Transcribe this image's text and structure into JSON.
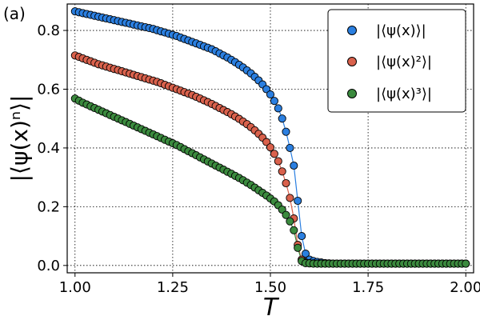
{
  "panel_label": "(a)",
  "chart_data": {
    "type": "scatter",
    "xlabel": "T",
    "ylabel": "|⟨ψ(x)ⁿ⟩|",
    "xlim": [
      0.98,
      2.02
    ],
    "ylim": [
      -0.025,
      0.89
    ],
    "xticks": [
      1.0,
      1.25,
      1.5,
      1.75,
      2.0
    ],
    "xtick_labels": [
      "1.00",
      "1.25",
      "1.50",
      "1.75",
      "2.00"
    ],
    "yticks": [
      0.0,
      0.2,
      0.4,
      0.6,
      0.8
    ],
    "ytick_labels": [
      "0.0",
      "0.2",
      "0.4",
      "0.6",
      "0.8"
    ],
    "grid": true,
    "legend_position": "top-right",
    "series": [
      {
        "name": "|⟨ψ(x)⟩|",
        "color": "#2b7fe0",
        "x": [
          1.0,
          1.01,
          1.02,
          1.03,
          1.04,
          1.05,
          1.06,
          1.07,
          1.08,
          1.09,
          1.1,
          1.11,
          1.12,
          1.13,
          1.14,
          1.15,
          1.16,
          1.17,
          1.18,
          1.19,
          1.2,
          1.21,
          1.22,
          1.23,
          1.24,
          1.25,
          1.26,
          1.27,
          1.28,
          1.29,
          1.3,
          1.31,
          1.32,
          1.33,
          1.34,
          1.35,
          1.36,
          1.37,
          1.38,
          1.39,
          1.4,
          1.41,
          1.42,
          1.43,
          1.44,
          1.45,
          1.46,
          1.47,
          1.48,
          1.49,
          1.5,
          1.51,
          1.52,
          1.53,
          1.54,
          1.55,
          1.56,
          1.57,
          1.58,
          1.59,
          1.6,
          1.61,
          1.62,
          1.63,
          1.64,
          1.65,
          1.66,
          1.67,
          1.68,
          1.69,
          1.7,
          1.71,
          1.72,
          1.73,
          1.74,
          1.75,
          1.76,
          1.77,
          1.78,
          1.79,
          1.8,
          1.81,
          1.82,
          1.83,
          1.84,
          1.85,
          1.86,
          1.87,
          1.88,
          1.89,
          1.9,
          1.91,
          1.92,
          1.93,
          1.94,
          1.95,
          1.96,
          1.97,
          1.98,
          1.99,
          2.0
        ],
        "y": [
          0.865,
          0.862,
          0.859,
          0.856,
          0.853,
          0.85,
          0.847,
          0.844,
          0.841,
          0.838,
          0.835,
          0.832,
          0.829,
          0.826,
          0.823,
          0.82,
          0.817,
          0.814,
          0.811,
          0.808,
          0.805,
          0.801,
          0.797,
          0.793,
          0.789,
          0.785,
          0.781,
          0.776,
          0.771,
          0.766,
          0.761,
          0.756,
          0.751,
          0.746,
          0.741,
          0.736,
          0.729,
          0.722,
          0.715,
          0.708,
          0.7,
          0.692,
          0.683,
          0.674,
          0.664,
          0.654,
          0.642,
          0.63,
          0.616,
          0.6,
          0.582,
          0.56,
          0.535,
          0.5,
          0.455,
          0.4,
          0.34,
          0.22,
          0.1,
          0.04,
          0.02,
          0.015,
          0.012,
          0.01,
          0.008,
          0.007,
          0.006,
          0.006,
          0.006,
          0.006,
          0.006,
          0.006,
          0.006,
          0.006,
          0.006,
          0.006,
          0.006,
          0.006,
          0.006,
          0.006,
          0.006,
          0.006,
          0.006,
          0.006,
          0.006,
          0.006,
          0.006,
          0.006,
          0.006,
          0.006,
          0.006,
          0.006,
          0.006,
          0.006,
          0.006,
          0.006,
          0.006,
          0.006,
          0.006,
          0.006,
          0.006
        ]
      },
      {
        "name": "|⟨ψ(x)²⟩|",
        "color": "#d9614c",
        "x": [
          1.0,
          1.01,
          1.02,
          1.03,
          1.04,
          1.05,
          1.06,
          1.07,
          1.08,
          1.09,
          1.1,
          1.11,
          1.12,
          1.13,
          1.14,
          1.15,
          1.16,
          1.17,
          1.18,
          1.19,
          1.2,
          1.21,
          1.22,
          1.23,
          1.24,
          1.25,
          1.26,
          1.27,
          1.28,
          1.29,
          1.3,
          1.31,
          1.32,
          1.33,
          1.34,
          1.35,
          1.36,
          1.37,
          1.38,
          1.39,
          1.4,
          1.41,
          1.42,
          1.43,
          1.44,
          1.45,
          1.46,
          1.47,
          1.48,
          1.49,
          1.5,
          1.51,
          1.52,
          1.53,
          1.54,
          1.55,
          1.56,
          1.57,
          1.58,
          1.59,
          1.6,
          1.61,
          1.62,
          1.63,
          1.64,
          1.65,
          1.66,
          1.67,
          1.68,
          1.69,
          1.7,
          1.71,
          1.72,
          1.73,
          1.74,
          1.75,
          1.76,
          1.77,
          1.78,
          1.79,
          1.8,
          1.81,
          1.82,
          1.83,
          1.84,
          1.85,
          1.86,
          1.87,
          1.88,
          1.89,
          1.9,
          1.91,
          1.92,
          1.93,
          1.94,
          1.95,
          1.96,
          1.97,
          1.98,
          1.99,
          2.0
        ],
        "y": [
          0.715,
          0.71,
          0.705,
          0.7,
          0.695,
          0.69,
          0.685,
          0.681,
          0.677,
          0.673,
          0.669,
          0.665,
          0.661,
          0.657,
          0.653,
          0.649,
          0.645,
          0.641,
          0.637,
          0.633,
          0.629,
          0.625,
          0.62,
          0.615,
          0.61,
          0.605,
          0.6,
          0.595,
          0.59,
          0.585,
          0.58,
          0.574,
          0.568,
          0.562,
          0.556,
          0.55,
          0.543,
          0.536,
          0.529,
          0.522,
          0.515,
          0.507,
          0.499,
          0.49,
          0.481,
          0.471,
          0.46,
          0.448,
          0.435,
          0.42,
          0.402,
          0.38,
          0.355,
          0.32,
          0.28,
          0.23,
          0.16,
          0.07,
          0.02,
          0.01,
          0.008,
          0.007,
          0.006,
          0.006,
          0.006,
          0.006,
          0.006,
          0.006,
          0.006,
          0.006,
          0.006,
          0.006,
          0.006,
          0.006,
          0.006,
          0.006,
          0.006,
          0.006,
          0.006,
          0.006,
          0.006,
          0.006,
          0.006,
          0.006,
          0.006,
          0.006,
          0.006,
          0.006,
          0.006,
          0.006,
          0.006,
          0.006,
          0.006,
          0.006,
          0.006,
          0.006,
          0.006,
          0.006,
          0.006,
          0.006,
          0.006
        ]
      },
      {
        "name": "|⟨ψ(x)³⟩|",
        "color": "#3b8a3e",
        "x": [
          1.0,
          1.01,
          1.02,
          1.03,
          1.04,
          1.05,
          1.06,
          1.07,
          1.08,
          1.09,
          1.1,
          1.11,
          1.12,
          1.13,
          1.14,
          1.15,
          1.16,
          1.17,
          1.18,
          1.19,
          1.2,
          1.21,
          1.22,
          1.23,
          1.24,
          1.25,
          1.26,
          1.27,
          1.28,
          1.29,
          1.3,
          1.31,
          1.32,
          1.33,
          1.34,
          1.35,
          1.36,
          1.37,
          1.38,
          1.39,
          1.4,
          1.41,
          1.42,
          1.43,
          1.44,
          1.45,
          1.46,
          1.47,
          1.48,
          1.49,
          1.5,
          1.51,
          1.52,
          1.53,
          1.54,
          1.55,
          1.56,
          1.57,
          1.58,
          1.59,
          1.6,
          1.61,
          1.62,
          1.63,
          1.64,
          1.65,
          1.66,
          1.67,
          1.68,
          1.69,
          1.7,
          1.71,
          1.72,
          1.73,
          1.74,
          1.75,
          1.76,
          1.77,
          1.78,
          1.79,
          1.8,
          1.81,
          1.82,
          1.83,
          1.84,
          1.85,
          1.86,
          1.87,
          1.88,
          1.89,
          1.9,
          1.91,
          1.92,
          1.93,
          1.94,
          1.95,
          1.96,
          1.97,
          1.98,
          1.99,
          2.0
        ],
        "y": [
          0.568,
          0.561,
          0.554,
          0.548,
          0.542,
          0.536,
          0.53,
          0.524,
          0.518,
          0.512,
          0.506,
          0.5,
          0.494,
          0.488,
          0.482,
          0.476,
          0.47,
          0.464,
          0.458,
          0.452,
          0.446,
          0.44,
          0.434,
          0.428,
          0.422,
          0.416,
          0.41,
          0.403,
          0.396,
          0.389,
          0.382,
          0.375,
          0.368,
          0.361,
          0.354,
          0.347,
          0.34,
          0.333,
          0.326,
          0.319,
          0.312,
          0.305,
          0.298,
          0.29,
          0.282,
          0.274,
          0.265,
          0.256,
          0.247,
          0.238,
          0.228,
          0.218,
          0.205,
          0.19,
          0.172,
          0.15,
          0.12,
          0.06,
          0.015,
          0.008,
          0.007,
          0.006,
          0.006,
          0.006,
          0.006,
          0.006,
          0.006,
          0.006,
          0.006,
          0.006,
          0.006,
          0.006,
          0.006,
          0.006,
          0.006,
          0.006,
          0.006,
          0.006,
          0.006,
          0.006,
          0.006,
          0.006,
          0.006,
          0.006,
          0.006,
          0.006,
          0.006,
          0.006,
          0.006,
          0.006,
          0.006,
          0.006,
          0.006,
          0.006,
          0.006,
          0.006,
          0.006,
          0.006,
          0.006,
          0.006,
          0.006
        ]
      }
    ]
  }
}
